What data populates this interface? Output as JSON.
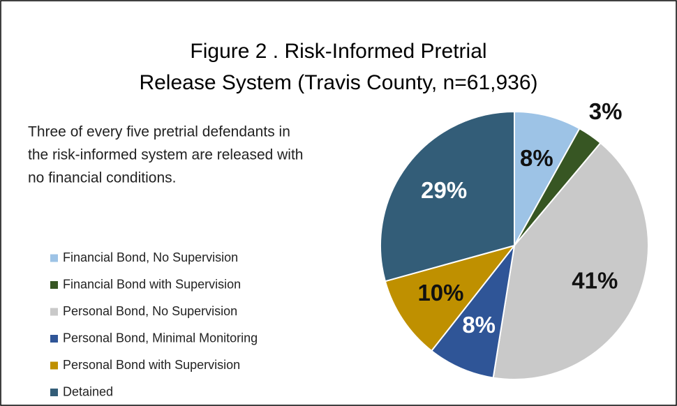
{
  "chart_data": {
    "type": "pie",
    "title": [
      "Figure 2 .  Risk-Informed Pretrial",
      "Release System (Travis County, n=61,936)"
    ],
    "annotation": [
      "Three of every five pretrial defendants in",
      "the risk-informed system are released with",
      "no financial conditions."
    ],
    "categories": [
      "Financial Bond, No Supervision",
      "Financial Bond with Supervision",
      "Personal Bond, No Supervision",
      "Personal Bond, Minimal Monitoring",
      "Personal Bond with Supervision",
      "Detained"
    ],
    "values": [
      8,
      3,
      41,
      8,
      10,
      29
    ],
    "value_labels": [
      "8%",
      "3%",
      "41%",
      "8%",
      "10%",
      "29%"
    ],
    "colors": [
      "#9dc3e6",
      "#375623",
      "#c9c9c9",
      "#2f5597",
      "#bf9000",
      "#335d78"
    ],
    "legend": "left"
  }
}
